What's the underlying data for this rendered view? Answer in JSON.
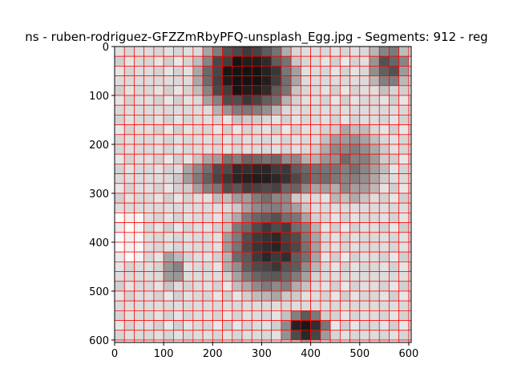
{
  "chart_data": {
    "type": "heatmap",
    "title": "ns - ruben-rodriguez-GFZZmRbyPFQ-unsplash_Egg.jpg - Segments: 912 - reg",
    "xlabel": "",
    "ylabel": "",
    "xlim": [
      0,
      605
    ],
    "ylim": [
      605,
      0
    ],
    "x_ticks": [
      0,
      100,
      200,
      300,
      400,
      500,
      600
    ],
    "y_ticks": [
      0,
      100,
      200,
      300,
      400,
      500,
      600
    ],
    "grid": false,
    "boundary_color": "#ff0000",
    "segment_count": 912,
    "colormap": "gray"
  }
}
